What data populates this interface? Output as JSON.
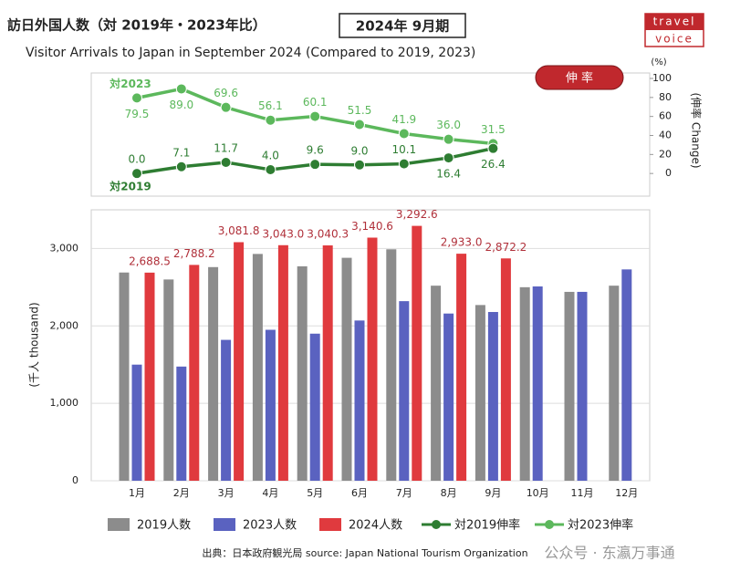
{
  "header": {
    "title": "訪日外国人数（対 2019年・2023年比）",
    "period": "2024年 9月期",
    "subtitle": "Visitor Arrivals to Japan in September 2024 (Compared to 2019, 2023)",
    "logo_top": "travel",
    "logo_bottom": "voice"
  },
  "footer": {
    "source": "出典：日本政府観光局  source: Japan National Tourism Organization",
    "watermark": "公众号 · 东瀛万事通"
  },
  "chart_data": [
    {
      "type": "line",
      "badge": "伸 率",
      "y2_unit": "(%)",
      "y2_label": "(伸率 Change)",
      "categories": [
        "1月",
        "2月",
        "3月",
        "4月",
        "5月",
        "6月",
        "7月",
        "8月",
        "9月",
        "10月",
        "11月",
        "12月"
      ],
      "y2lim": [
        -20,
        100
      ],
      "y2ticks": [
        0,
        20,
        40,
        60,
        80,
        100
      ],
      "grid": false,
      "series": [
        {
          "name": "対2023伸率",
          "label": "対2023",
          "color": "#5cb85c",
          "axis": "y2",
          "values": [
            79.5,
            89.0,
            69.6,
            56.1,
            60.1,
            51.5,
            41.9,
            36.0,
            31.5,
            null,
            null,
            null
          ],
          "value_labels": [
            "79.5",
            "89.0",
            "69.6",
            "56.1",
            "60.1",
            "51.5",
            "41.9",
            "36.0",
            "31.5",
            null,
            null,
            null
          ]
        },
        {
          "name": "対2019伸率",
          "label": "対2019",
          "color": "#2e7d32",
          "axis": "y2",
          "values": [
            0.0,
            7.1,
            11.7,
            4.0,
            9.6,
            9.0,
            10.1,
            16.4,
            26.4,
            null,
            null,
            null
          ],
          "value_labels": [
            "0.0",
            "7.1",
            "11.7",
            "4.0",
            "9.6",
            "9.0",
            "10.1",
            "16.4",
            "26.4",
            null,
            null,
            null
          ]
        }
      ]
    },
    {
      "type": "bar",
      "y_label": "(千人 thousand)",
      "categories": [
        "1月",
        "2月",
        "3月",
        "4月",
        "5月",
        "6月",
        "7月",
        "8月",
        "9月",
        "10月",
        "11月",
        "12月"
      ],
      "ylim": [
        0,
        3500
      ],
      "yticks": [
        0,
        {
          "value": 1000,
          "label": "1,000"
        },
        {
          "value": 2000,
          "label": "2,000"
        },
        {
          "value": 3000,
          "label": "3,000"
        }
      ],
      "grid": true,
      "series": [
        {
          "name": "2019人数",
          "color": "#8c8c8c",
          "values": [
            2690,
            2600,
            2760,
            2930,
            2770,
            2880,
            2990,
            2520,
            2270,
            2500,
            2440,
            2520
          ]
        },
        {
          "name": "2023人数",
          "color": "#5a62c0",
          "values": [
            1500,
            1475,
            1820,
            1950,
            1900,
            2070,
            2320,
            2160,
            2180,
            2510,
            2440,
            2730
          ]
        },
        {
          "name": "2024人数",
          "color": "#e03a3e",
          "values": [
            2688.5,
            2788.2,
            3081.8,
            3043.0,
            3040.3,
            3140.6,
            3292.6,
            2933.0,
            2872.2,
            null,
            null,
            null
          ],
          "value_labels": [
            "2,688.5",
            "2,788.2",
            "3,081.8",
            "3,043.0",
            "3,040.3",
            "3,140.6",
            "3,292.6",
            "2,933.0",
            "2,872.2",
            null,
            null,
            null
          ]
        }
      ]
    }
  ]
}
